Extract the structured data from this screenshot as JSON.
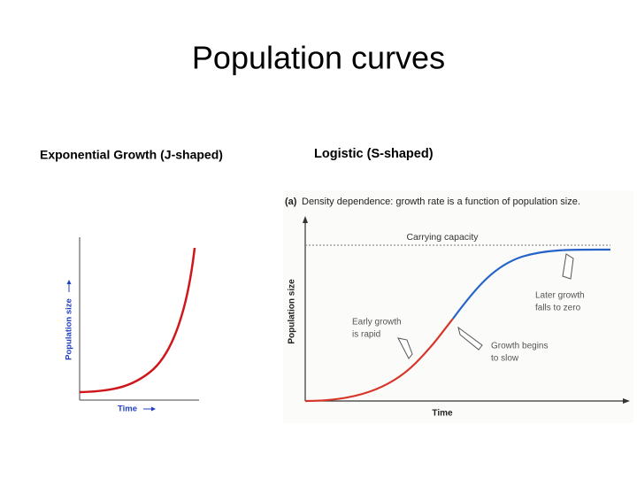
{
  "title": "Population curves",
  "left_panel": {
    "heading": "Exponential Growth (J-shaped)",
    "y_label": "Population size",
    "x_label": "Time"
  },
  "right_panel": {
    "heading": "Logistic (S-shaped)",
    "figure_label": "(a)",
    "caption": "Density dependence: growth rate is a function of population size.",
    "carrying_capacity": "Carrying capacity",
    "y_label": "Population size",
    "x_label": "Time",
    "annotations": [
      {
        "lines": [
          "Early growth",
          "is rapid"
        ]
      },
      {
        "lines": [
          "Growth begins",
          "to slow"
        ]
      },
      {
        "lines": [
          "Later growth",
          "falls to zero"
        ]
      }
    ]
  }
}
